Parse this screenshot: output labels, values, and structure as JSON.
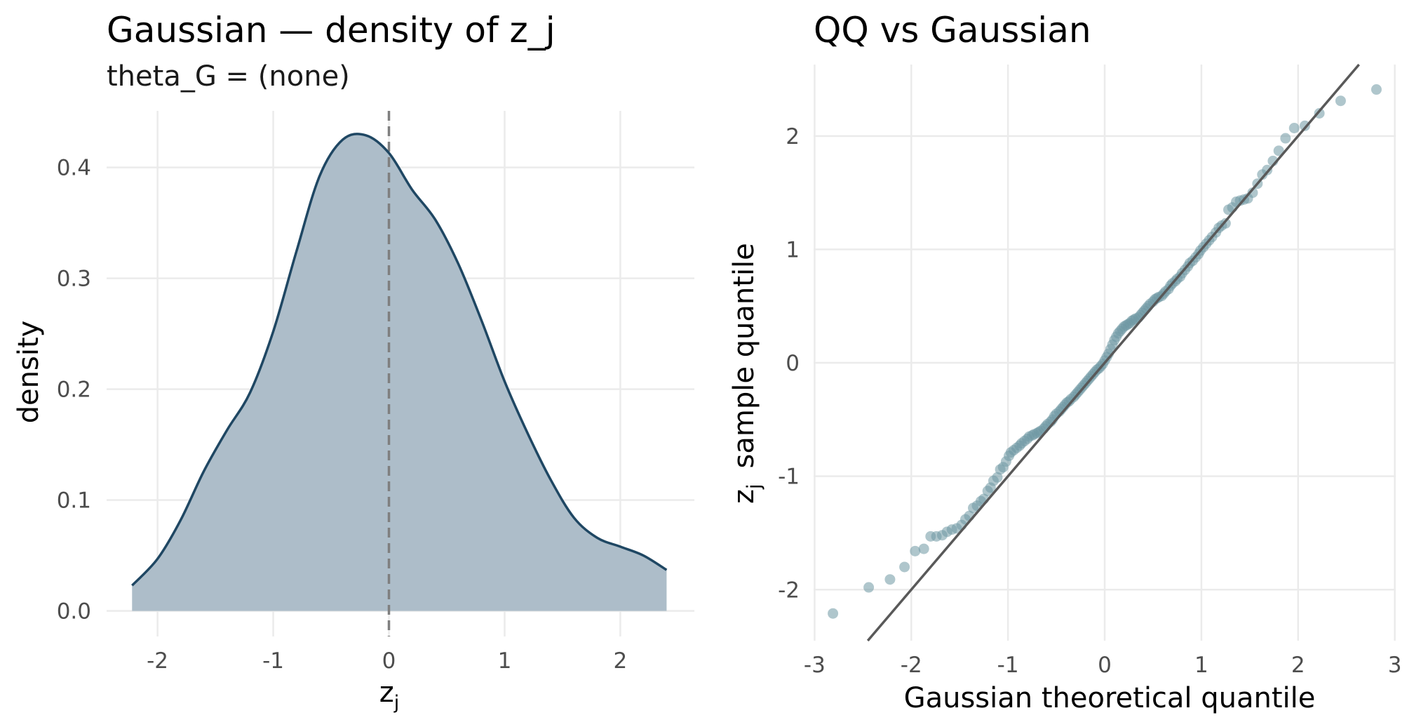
{
  "chart_data": [
    {
      "type": "area",
      "title": "Gaussian — density of z_j",
      "subtitle": "theta_G = (none)",
      "xlabel_main": "z",
      "xlabel_sub": "j",
      "ylabel": "density",
      "xlim": [
        -2.44,
        2.64
      ],
      "ylim": [
        -0.023,
        0.451
      ],
      "x_ticks": [
        -2,
        -1,
        0,
        1,
        2
      ],
      "x_tick_labels": [
        "-2",
        "-1",
        "0",
        "1",
        "2"
      ],
      "y_ticks": [
        0.0,
        0.1,
        0.2,
        0.3,
        0.4
      ],
      "y_tick_labels": [
        "0.0",
        "0.1",
        "0.2",
        "0.3",
        "0.4"
      ],
      "grid": true,
      "reference_line_x": 0,
      "fill_color": "#adbdc9",
      "line_color": "#1f4763",
      "density_x": [
        -2.22,
        -2.0,
        -1.8,
        -1.6,
        -1.4,
        -1.2,
        -1.0,
        -0.8,
        -0.6,
        -0.4,
        -0.2,
        0.0,
        0.2,
        0.4,
        0.6,
        0.8,
        1.0,
        1.2,
        1.4,
        1.6,
        1.8,
        2.0,
        2.2,
        2.4
      ],
      "density_y": [
        0.023,
        0.047,
        0.082,
        0.126,
        0.163,
        0.197,
        0.252,
        0.324,
        0.392,
        0.425,
        0.429,
        0.413,
        0.38,
        0.353,
        0.313,
        0.262,
        0.207,
        0.16,
        0.118,
        0.084,
        0.066,
        0.058,
        0.05,
        0.037
      ]
    },
    {
      "type": "scatter",
      "title": "QQ vs Gaussian",
      "xlabel": "Gaussian theoretical quantile",
      "ylabel_main": "z",
      "ylabel_sub": "j",
      "ylabel_rest": "sample quantile",
      "xlim": [
        -3.01,
        3.01
      ],
      "ylim": [
        -2.45,
        2.63
      ],
      "x_ticks": [
        -3,
        -2,
        -1,
        0,
        1,
        2,
        3
      ],
      "x_tick_labels": [
        "-3",
        "-2",
        "-1",
        "0",
        "1",
        "2",
        "3"
      ],
      "y_ticks": [
        -2,
        -1,
        0,
        1,
        2
      ],
      "y_tick_labels": [
        "-2",
        "-1",
        "0",
        "1",
        "2"
      ],
      "grid": true,
      "point_color": "#6e98a3",
      "line_color": "#595959",
      "reference_line": {
        "intercept": 0.0,
        "slope": 1.0
      },
      "points": [
        [
          -2.81,
          -2.21
        ],
        [
          -2.44,
          -1.98
        ],
        [
          -2.22,
          -1.91
        ],
        [
          -2.07,
          -1.8
        ],
        [
          -1.96,
          -1.66
        ],
        [
          -1.87,
          -1.64
        ],
        [
          -1.8,
          -1.53
        ],
        [
          -1.74,
          -1.53
        ],
        [
          -1.68,
          -1.52
        ],
        [
          -1.63,
          -1.49
        ],
        [
          -1.58,
          -1.47
        ],
        [
          -1.53,
          -1.46
        ],
        [
          -1.48,
          -1.43
        ],
        [
          -1.44,
          -1.38
        ],
        [
          -1.4,
          -1.35
        ],
        [
          -1.36,
          -1.28
        ],
        [
          -1.32,
          -1.26
        ],
        [
          -1.28,
          -1.22
        ],
        [
          -1.25,
          -1.2
        ],
        [
          -1.21,
          -1.13
        ],
        [
          -1.18,
          -1.1
        ],
        [
          -1.15,
          -1.04
        ],
        [
          -1.11,
          -1.01
        ],
        [
          -1.08,
          -0.94
        ],
        [
          -1.05,
          -0.92
        ],
        [
          -1.02,
          -0.87
        ],
        [
          -0.99,
          -0.82
        ],
        [
          -0.97,
          -0.79
        ],
        [
          -0.94,
          -0.77
        ],
        [
          -0.91,
          -0.75
        ],
        [
          -0.88,
          -0.73
        ],
        [
          -0.86,
          -0.71
        ],
        [
          -0.83,
          -0.69
        ],
        [
          -0.8,
          -0.67
        ],
        [
          -0.78,
          -0.65
        ],
        [
          -0.75,
          -0.64
        ],
        [
          -0.73,
          -0.63
        ],
        [
          -0.7,
          -0.62
        ],
        [
          -0.68,
          -0.61
        ],
        [
          -0.66,
          -0.6
        ],
        [
          -0.63,
          -0.58
        ],
        [
          -0.61,
          -0.56
        ],
        [
          -0.59,
          -0.54
        ],
        [
          -0.56,
          -0.52
        ],
        [
          -0.54,
          -0.5
        ],
        [
          -0.52,
          -0.47
        ],
        [
          -0.5,
          -0.45
        ],
        [
          -0.47,
          -0.43
        ],
        [
          -0.45,
          -0.41
        ],
        [
          -0.43,
          -0.39
        ],
        [
          -0.41,
          -0.37
        ],
        [
          -0.39,
          -0.35
        ],
        [
          -0.37,
          -0.34
        ],
        [
          -0.35,
          -0.32
        ],
        [
          -0.32,
          -0.3
        ],
        [
          -0.3,
          -0.28
        ],
        [
          -0.28,
          -0.26
        ],
        [
          -0.26,
          -0.24
        ],
        [
          -0.24,
          -0.22
        ],
        [
          -0.22,
          -0.2
        ],
        [
          -0.2,
          -0.18
        ],
        [
          -0.18,
          -0.16
        ],
        [
          -0.16,
          -0.14
        ],
        [
          -0.14,
          -0.12
        ],
        [
          -0.12,
          -0.1
        ],
        [
          -0.1,
          -0.08
        ],
        [
          -0.08,
          -0.06
        ],
        [
          -0.06,
          -0.05
        ],
        [
          -0.04,
          -0.03
        ],
        [
          -0.02,
          -0.01
        ],
        [
          0.0,
          0.02
        ],
        [
          0.02,
          0.05
        ],
        [
          0.04,
          0.08
        ],
        [
          0.06,
          0.12
        ],
        [
          0.08,
          0.16
        ],
        [
          0.1,
          0.2
        ],
        [
          0.12,
          0.23
        ],
        [
          0.14,
          0.26
        ],
        [
          0.16,
          0.28
        ],
        [
          0.18,
          0.3
        ],
        [
          0.2,
          0.32
        ],
        [
          0.22,
          0.33
        ],
        [
          0.24,
          0.34
        ],
        [
          0.26,
          0.35
        ],
        [
          0.28,
          0.37
        ],
        [
          0.3,
          0.38
        ],
        [
          0.32,
          0.39
        ],
        [
          0.35,
          0.4
        ],
        [
          0.37,
          0.42
        ],
        [
          0.39,
          0.44
        ],
        [
          0.41,
          0.46
        ],
        [
          0.43,
          0.48
        ],
        [
          0.45,
          0.5
        ],
        [
          0.47,
          0.52
        ],
        [
          0.5,
          0.54
        ],
        [
          0.52,
          0.56
        ],
        [
          0.54,
          0.57
        ],
        [
          0.56,
          0.58
        ],
        [
          0.59,
          0.59
        ],
        [
          0.61,
          0.61
        ],
        [
          0.63,
          0.63
        ],
        [
          0.66,
          0.65
        ],
        [
          0.68,
          0.68
        ],
        [
          0.7,
          0.7
        ],
        [
          0.73,
          0.72
        ],
        [
          0.75,
          0.74
        ],
        [
          0.78,
          0.76
        ],
        [
          0.8,
          0.79
        ],
        [
          0.83,
          0.82
        ],
        [
          0.86,
          0.85
        ],
        [
          0.88,
          0.88
        ],
        [
          0.91,
          0.9
        ],
        [
          0.94,
          0.93
        ],
        [
          0.97,
          0.96
        ],
        [
          0.99,
          0.99
        ],
        [
          1.02,
          1.02
        ],
        [
          1.05,
          1.05
        ],
        [
          1.08,
          1.08
        ],
        [
          1.11,
          1.11
        ],
        [
          1.15,
          1.15
        ],
        [
          1.18,
          1.19
        ],
        [
          1.21,
          1.21
        ],
        [
          1.25,
          1.23
        ],
        [
          1.28,
          1.35
        ],
        [
          1.32,
          1.37
        ],
        [
          1.36,
          1.42
        ],
        [
          1.4,
          1.43
        ],
        [
          1.44,
          1.44
        ],
        [
          1.48,
          1.45
        ],
        [
          1.53,
          1.5
        ],
        [
          1.58,
          1.58
        ],
        [
          1.63,
          1.66
        ],
        [
          1.68,
          1.7
        ],
        [
          1.74,
          1.78
        ],
        [
          1.8,
          1.87
        ],
        [
          1.87,
          1.98
        ],
        [
          1.96,
          2.07
        ],
        [
          2.07,
          2.09
        ],
        [
          2.22,
          2.2
        ],
        [
          2.44,
          2.31
        ],
        [
          2.81,
          2.41
        ]
      ]
    }
  ]
}
